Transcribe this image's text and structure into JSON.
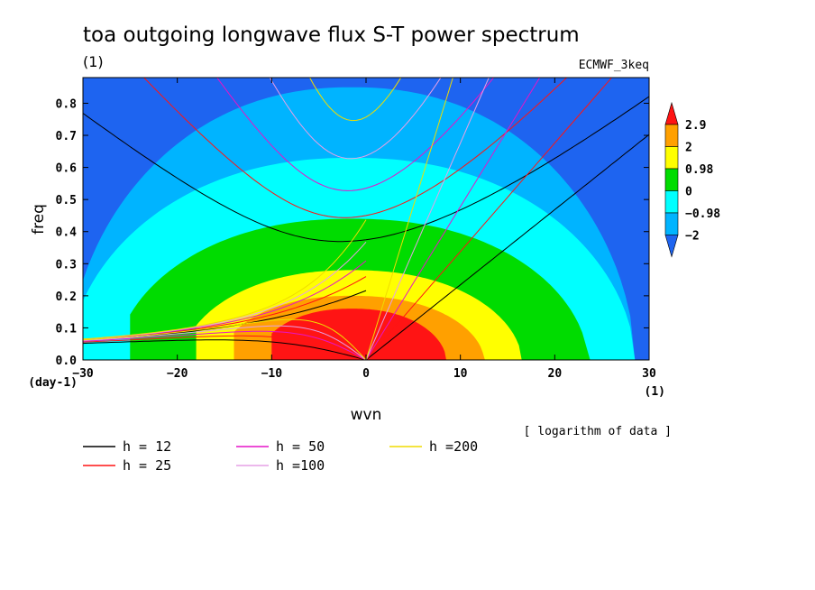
{
  "chart_data": {
    "type": "heatmap",
    "title": "toa outgoing longwave flux S-T power spectrum",
    "subtitle": "(1)",
    "model_label": "ECMWF_3keq",
    "xlabel": "wvn",
    "ylabel": "freq",
    "x_unit": "(1)",
    "y_unit": "(day-1)",
    "xlim": [
      -30,
      30
    ],
    "ylim": [
      0,
      0.88
    ],
    "xticks": [
      "−30",
      "−20",
      "−10",
      "0",
      "10",
      "20",
      "30"
    ],
    "xtick_values": [
      -30,
      -20,
      -10,
      0,
      10,
      20,
      30
    ],
    "yticks": [
      "0.0",
      "0.1",
      "0.2",
      "0.3",
      "0.4",
      "0.5",
      "0.6",
      "0.7",
      "0.8"
    ],
    "ytick_values": [
      0,
      0.1,
      0.2,
      0.3,
      0.4,
      0.5,
      0.6,
      0.7,
      0.8
    ],
    "note": "[ logarithm of data ]",
    "colorbar": {
      "labels": [
        "2.9",
        "2",
        "0.98",
        "0",
        "−0.98",
        "−2"
      ],
      "levels": [
        2.9,
        2,
        0.98,
        0,
        -0.98,
        -2
      ],
      "colors": [
        "#1e64f0",
        "#00b4ff",
        "#00ffff",
        "#00dc00",
        "#ffff00",
        "#ffa000",
        "#ff1414"
      ],
      "over_color": "#ff1414",
      "under_color": "#1e64f0"
    },
    "contour_bands": [
      {
        "level": "above 2.9",
        "color": "#ff1414",
        "x_range": [
          -10,
          10
        ],
        "peak_freq": 0.16
      },
      {
        "level": "2 to 2.9",
        "color": "#ffa000",
        "x_range": [
          -14,
          14
        ],
        "peak_freq": 0.2
      },
      {
        "level": "0.98 to 2",
        "color": "#ffff00",
        "x_range": [
          -18,
          18
        ],
        "peak_freq": 0.28
      },
      {
        "level": "0 to 0.98",
        "color": "#00dc00",
        "x_range": [
          -25,
          25
        ],
        "peak_freq": 0.44
      },
      {
        "level": "-0.98 to 0",
        "color": "#00ffff",
        "x_range": [
          -30,
          30
        ],
        "peak_freq": 0.63
      },
      {
        "level": "-2 to -0.98",
        "color": "#00b4ff",
        "x_range": [
          -30,
          30
        ],
        "peak_freq": 0.85
      },
      {
        "level": "below -2",
        "color": "#1e64f0",
        "x_range": [
          -30,
          30
        ],
        "peak_freq": 0.88
      }
    ],
    "dispersion_curves": [
      {
        "name": "h = 12",
        "h": 12,
        "color": "#000000"
      },
      {
        "name": "h = 25",
        "h": 25,
        "color": "#ff1414"
      },
      {
        "name": "h = 50",
        "h": 50,
        "color": "#e614c8"
      },
      {
        "name": "h =100",
        "h": 100,
        "color": "#e6a0e6"
      },
      {
        "name": "h =200",
        "h": 200,
        "color": "#f0dc00"
      }
    ],
    "legend": [
      {
        "label": "h = 12",
        "color": "#000000"
      },
      {
        "label": "h = 50",
        "color": "#e614c8"
      },
      {
        "label": "h =200",
        "color": "#f0dc00"
      },
      {
        "label": "h = 25",
        "color": "#ff1414"
      },
      {
        "label": "h =100",
        "color": "#e6a0e6"
      }
    ]
  }
}
